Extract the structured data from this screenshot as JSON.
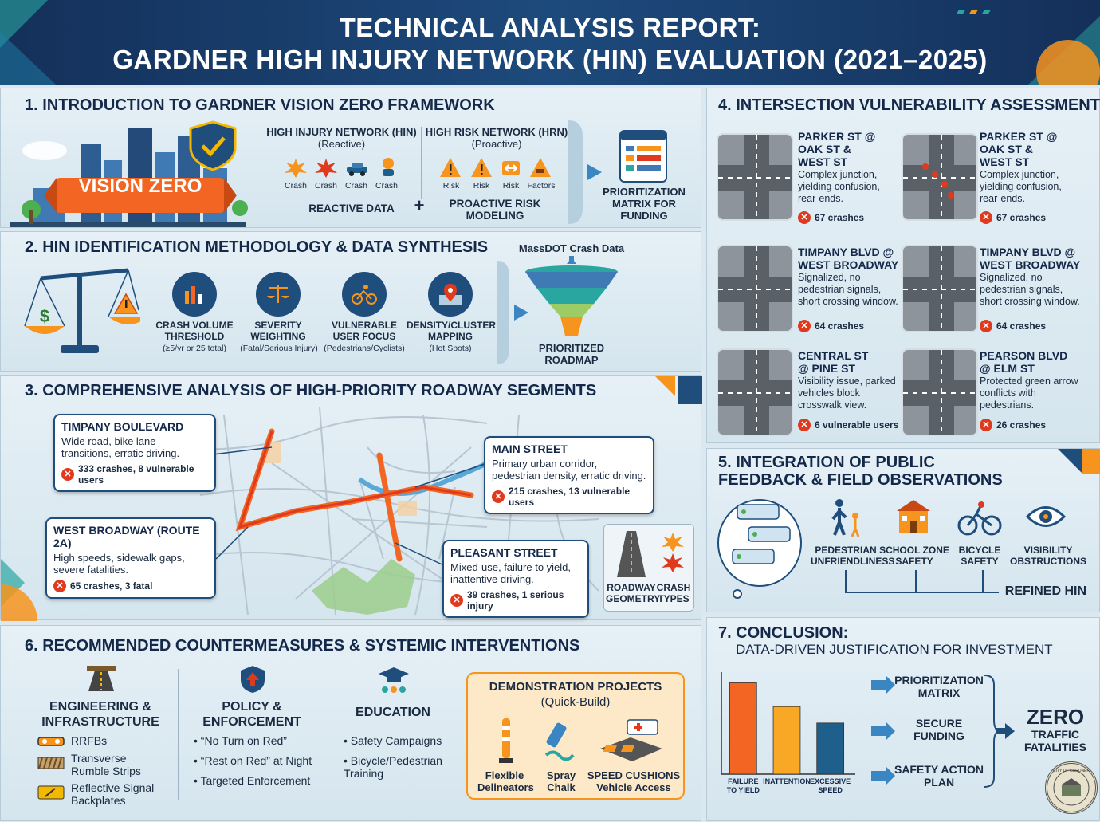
{
  "header": {
    "line1": "TECHNICAL ANALYSIS REPORT:",
    "line2": "GARDNER HIGH INJURY NETWORK (HIN) EVALUATION (2021–2025)"
  },
  "section1": {
    "title": "1. INTRODUCTION TO GARDNER VISION ZERO FRAMEWORK",
    "banner": "VISION ZERO",
    "hin_title": "HIGH INJURY NETWORK (HIN)",
    "hin_sub": "(Reactive)",
    "hin_icons": [
      "Crash",
      "Crash",
      "Crash",
      "Crash"
    ],
    "hrn_title": "HIGH RISK NETWORK (HRN)",
    "hrn_sub": "(Proactive)",
    "hrn_icons": [
      "Risk",
      "Risk",
      "Risk",
      "Factors"
    ],
    "reactive_data": "REACTIVE DATA",
    "plus": "+",
    "proactive": "PROACTIVE RISK MODELING",
    "matrix": "PRIORITIZATION MATRIX FOR FUNDING"
  },
  "section2": {
    "title": "2. HIN IDENTIFICATION METHODOLOGY & DATA SYNTHESIS",
    "steps": [
      {
        "label": "CRASH VOLUME THRESHOLD",
        "sub": "(≥5/yr or 25 total)",
        "icon": "bar-chart-icon"
      },
      {
        "label": "SEVERITY WEIGHTING",
        "sub": "(Fatal/Serious Injury)",
        "icon": "scale-icon"
      },
      {
        "label": "VULNERABLE USER FOCUS",
        "sub": "(Pedestrians/Cyclists)",
        "icon": "cyclist-icon"
      },
      {
        "label": "DENSITY/CLUSTER MAPPING",
        "sub": "(Hot Spots)",
        "icon": "map-pin-icon"
      }
    ],
    "source": "MassDOT Crash Data",
    "output": "PRIORITIZED ROADMAP"
  },
  "section3": {
    "title": "3. COMPREHENSIVE ANALYSIS OF HIGH-PRIORITY ROADWAY SEGMENTS",
    "callouts": [
      {
        "name": "TIMPANY BOULEVARD",
        "desc": "Wide road, bike lane transitions, erratic driving.",
        "stat": "333 crashes, 8 vulnerable users"
      },
      {
        "name": "MAIN STREET",
        "desc": "Primary urban corridor, pedestrian density, erratic driving.",
        "stat": "215 crashes, 13 vulnerable users"
      },
      {
        "name": "WEST BROADWAY (ROUTE 2A)",
        "desc": "High speeds, sidewalk gaps, severe fatalities.",
        "stat": "65 crashes, 3 fatal"
      },
      {
        "name": "PLEASANT STREET",
        "desc": "Mixed-use, failure to yield, inattentive driving.",
        "stat": "39 crashes, 1 serious injury"
      }
    ],
    "legend": [
      "ROADWAY GEOMETRY",
      "CRASH TYPES"
    ]
  },
  "section4": {
    "title": "4. INTERSECTION VULNERABILITY ASSESSMENT",
    "items": [
      {
        "name": "PARKER ST @ OAK ST & WEST ST",
        "desc": "Complex junction, yielding confusion, rear-ends.",
        "stat": "67 crashes"
      },
      {
        "name": "PARKER ST @ OAK ST & WEST ST",
        "desc": "Complex junction, yielding confusion, rear-ends.",
        "stat": "67 crashes"
      },
      {
        "name": "TIMPANY BLVD @ WEST BROADWAY",
        "desc": "Signalized, no pedestrian signals, short crossing window.",
        "stat": "64 crashes"
      },
      {
        "name": "TIMPANY BLVD @ WEST BROADWAY",
        "desc": "Signalized, no pedestrian signals, short crossing window.",
        "stat": "64 crashes"
      },
      {
        "name": "CENTRAL ST @ PINE ST",
        "desc": "Visibility issue, parked vehicles block crosswalk view.",
        "stat": "6 vulnerable users"
      },
      {
        "name": "PEARSON BLVD @ ELM ST",
        "desc": "Protected green arrow conflicts with pedestrians.",
        "stat": "26 crashes"
      }
    ]
  },
  "section5": {
    "title": "5. INTEGRATION OF PUBLIC FEEDBACK & FIELD OBSERVATIONS",
    "items": [
      "PEDESTRIAN UNFRIENDLINESS",
      "SCHOOL ZONE SAFETY",
      "BICYCLE SAFETY",
      "VISIBILITY OBSTRUCTIONS"
    ],
    "result": "REFINED HIN"
  },
  "section6": {
    "title": "6. RECOMMENDED COUNTERMEASURES & SYSTEMIC INTERVENTIONS",
    "engineering": {
      "title": "ENGINEERING & INFRASTRUCTURE",
      "items": [
        "RRFBs",
        "Transverse Rumble Strips",
        "Reflective Signal Backplates"
      ]
    },
    "policy": {
      "title": "POLICY & ENFORCEMENT",
      "items": [
        "“No Turn on Red”",
        "“Rest on Red” at Night",
        "Targeted Enforcement"
      ]
    },
    "education": {
      "title": "EDUCATION",
      "items": [
        "Safety Campaigns",
        "Bicycle/Pedestrian Training"
      ]
    },
    "demo": {
      "title": "DEMONSTRATION PROJECTS",
      "sub": "(Quick-Build)",
      "items": [
        "Flexible Delineators",
        "Spray Chalk",
        "SPEED CUSHIONS Vehicle Access"
      ]
    }
  },
  "section7": {
    "title": "7. CONCLUSION:",
    "subtitle": "DATA-DRIVEN JUSTIFICATION FOR INVESTMENT",
    "steps": [
      "PRIORITIZATION MATRIX",
      "SECURE FUNDING",
      "SAFETY ACTION PLAN"
    ],
    "goal_big": "ZERO",
    "goal_small": "TRAFFIC FATALITIES",
    "seal_text": "CITY OF GARDNER"
  },
  "chart_data": {
    "type": "bar",
    "categories": [
      "FAILURE TO YIELD",
      "INATTENTION",
      "EXCESSIVE SPEED"
    ],
    "values": [
      100,
      74,
      56
    ],
    "colors": [
      "#f26522",
      "#f9a825",
      "#1f5f8b"
    ],
    "ylim": [
      0,
      110
    ]
  },
  "colors": {
    "navy": "#14305a",
    "accent": "#f26522",
    "teal": "#2aa6a0"
  }
}
